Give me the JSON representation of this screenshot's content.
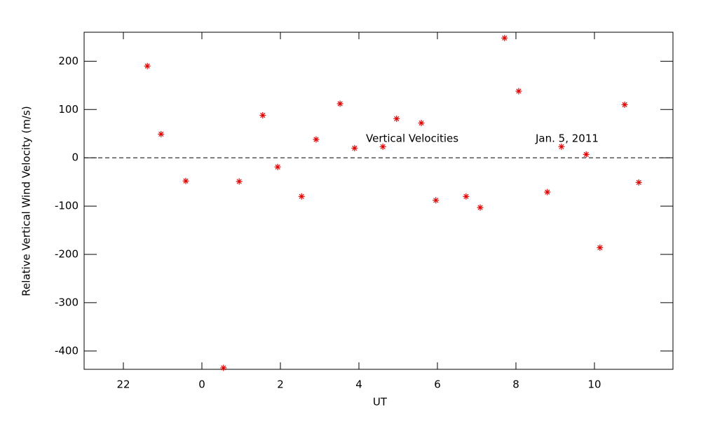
{
  "chart_data": {
    "type": "scatter",
    "x_label": "UT",
    "y_label": "Relative Vertical Wind Velocity (m/s)",
    "annotations": [
      "Vertical Velocities",
      "Jan. 5, 2011"
    ],
    "reference_line": 0,
    "xlim": [
      -3,
      12
    ],
    "xticks": [
      {
        "value": -2,
        "label": "22"
      },
      0,
      2,
      4,
      6,
      8,
      10
    ],
    "ylim": [
      -438,
      260
    ],
    "yticks": [
      -400,
      -300,
      -200,
      -100,
      0,
      100,
      200
    ],
    "series": [
      {
        "color": "#e00000",
        "x": [
          -1.39,
          -1.04,
          -0.41,
          0.55,
          0.95,
          1.55,
          1.93,
          2.54,
          2.91,
          3.52,
          3.89,
          4.61,
          4.96,
          5.59,
          5.96,
          6.73,
          7.09,
          7.71,
          8.07,
          8.8,
          9.16,
          9.79,
          10.14,
          10.77,
          11.13
        ],
        "values": [
          190,
          49,
          -48,
          -435,
          -49,
          88,
          -19,
          -80,
          38,
          112,
          20,
          23,
          81,
          72,
          -88,
          -80,
          -103,
          248,
          138,
          -71,
          23,
          7,
          -186,
          110,
          -51
        ]
      }
    ]
  }
}
